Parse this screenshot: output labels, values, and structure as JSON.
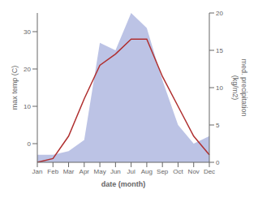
{
  "chart_data": {
    "type": "line",
    "categories": [
      "Jan",
      "Feb",
      "Mar",
      "Apr",
      "May",
      "Jun",
      "Jul",
      "Aug",
      "Sep",
      "Oct",
      "Nov",
      "Dec"
    ],
    "series": [
      {
        "type": "area",
        "color": "#b0b8e0",
        "axis": "y2",
        "values": [
          1.0,
          1.0,
          1.5,
          3.0,
          16.0,
          15.0,
          20.0,
          18.0,
          11.0,
          5.0,
          2.5,
          3.5
        ]
      },
      {
        "type": "line",
        "color": "#b03030",
        "values": [
          -5,
          -4,
          2,
          12,
          21,
          24,
          28,
          28,
          18,
          10,
          2,
          -3
        ]
      }
    ],
    "xlabel": "date (month)",
    "ylabel": "max temp (C)",
    "y2label": "med. precipitation\n(kg/m2)",
    "ylim": [
      -5,
      35
    ],
    "yticks": [
      0,
      10,
      20,
      30
    ],
    "y2lim": [
      0,
      20
    ],
    "y2ticks": [
      0,
      5,
      10,
      15,
      20
    ],
    "grid": false
  }
}
